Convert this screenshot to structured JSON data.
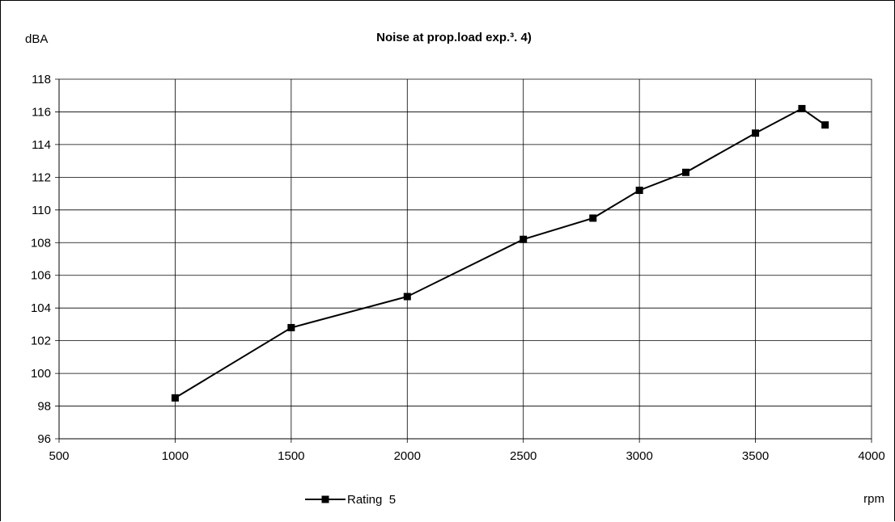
{
  "chart_data": {
    "type": "line",
    "title": "Noise at prop.load exp.³. 4)",
    "ylabel": "dBA",
    "xlabel": "rpm",
    "xlim": [
      500,
      4000
    ],
    "ylim": [
      96,
      118
    ],
    "x_ticks": [
      500,
      1000,
      1500,
      2000,
      2500,
      3000,
      3500,
      4000
    ],
    "y_ticks": [
      96,
      98,
      100,
      102,
      104,
      106,
      108,
      110,
      112,
      114,
      116,
      118
    ],
    "grid": true,
    "legend_position": "bottom",
    "series": [
      {
        "name": "Rating  5",
        "color": "#000000",
        "marker": "square",
        "x": [
          1000,
          1500,
          2000,
          2500,
          2800,
          3000,
          3200,
          3500,
          3700,
          3800
        ],
        "y": [
          98.5,
          102.8,
          104.7,
          108.2,
          109.5,
          111.2,
          112.3,
          114.7,
          116.2,
          115.2
        ]
      }
    ]
  }
}
